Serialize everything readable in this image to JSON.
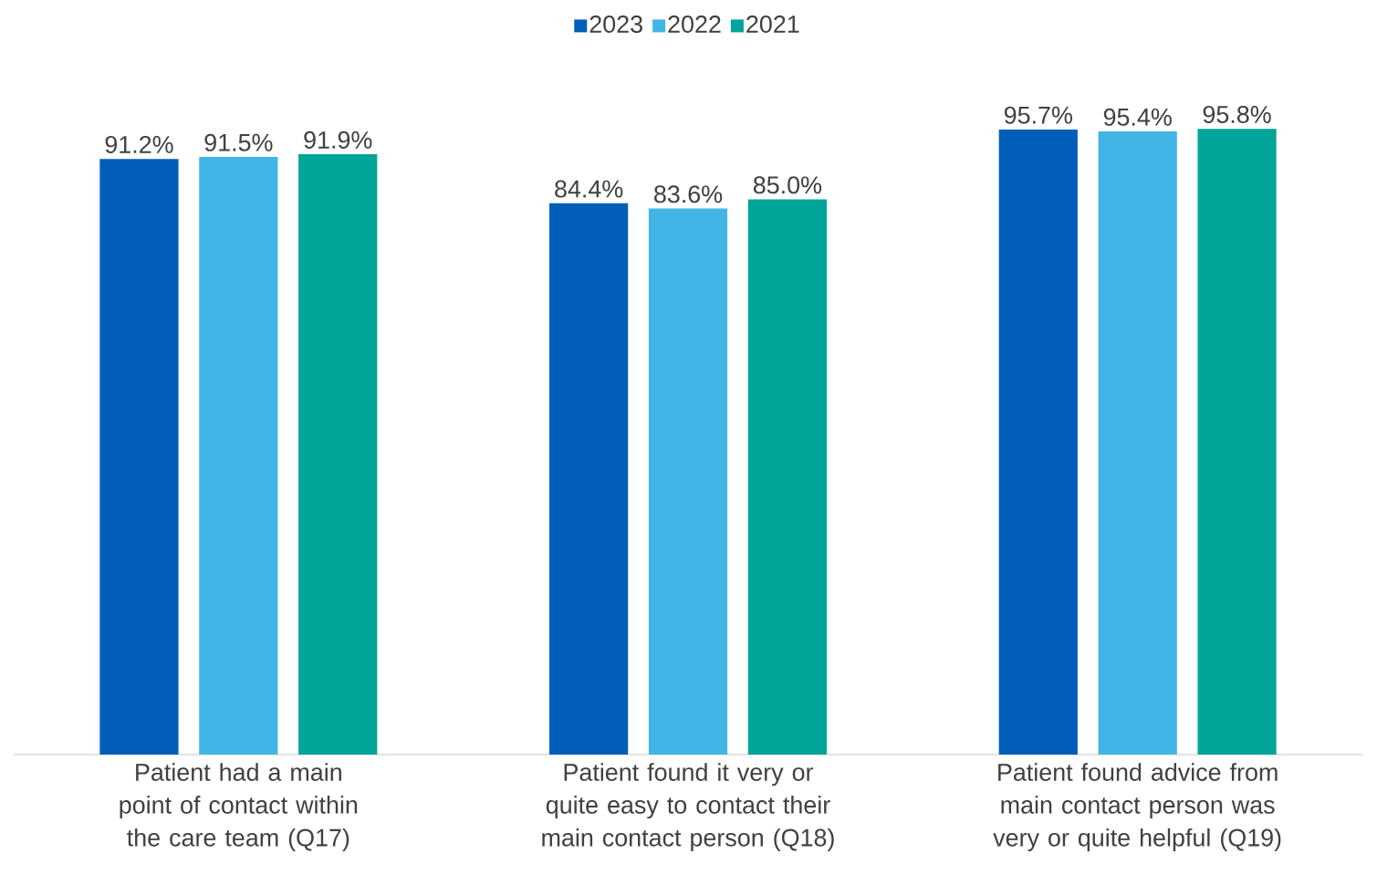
{
  "chart_data": {
    "type": "bar",
    "categories": [
      "Patient had a main point of contact within the care team (Q17)",
      "Patient found it very or quite easy to contact their main contact person (Q18)",
      "Patient found advice from main contact person was very or quite helpful (Q19)"
    ],
    "series": [
      {
        "name": "2023",
        "color": "#005eb8",
        "values": [
          91.2,
          84.4,
          95.7
        ],
        "value_labels": [
          "91.2%",
          "84.4%",
          "95.7%"
        ]
      },
      {
        "name": "2022",
        "color": "#41b6e6",
        "values": [
          91.5,
          83.6,
          95.4
        ],
        "value_labels": [
          "91.5%",
          "83.6%",
          "95.4%"
        ]
      },
      {
        "name": "2021",
        "color": "#00a499",
        "values": [
          91.9,
          85.0,
          95.8
        ],
        "value_labels": [
          "91.9%",
          "85.0%",
          "95.8%"
        ]
      }
    ],
    "legend": "top"
  }
}
